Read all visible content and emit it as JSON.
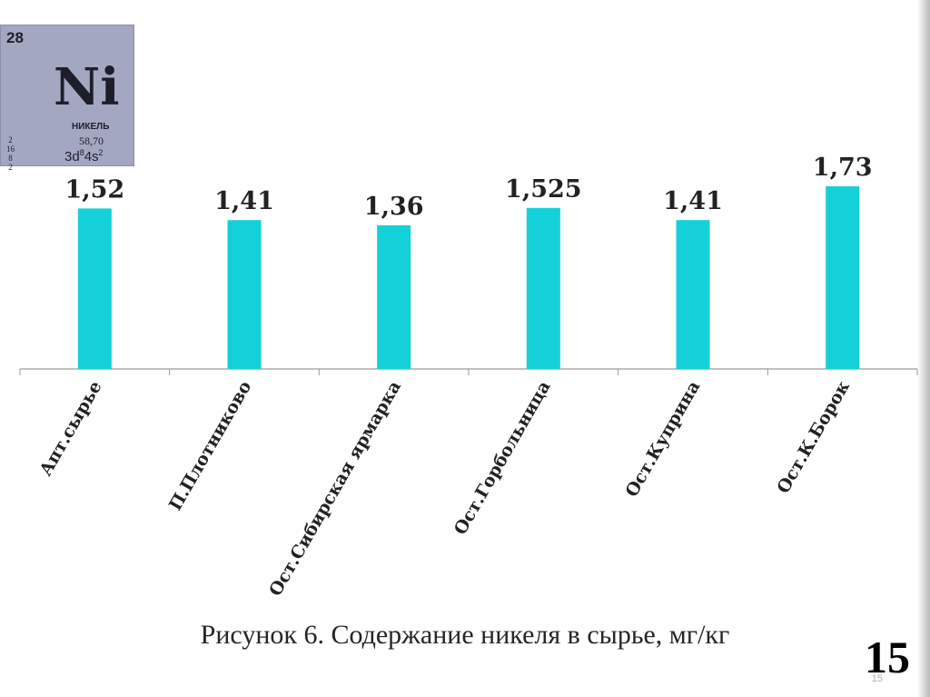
{
  "element": {
    "number": "28",
    "symbol": "Ni",
    "name": "НИКЕЛЬ",
    "mass": "58,70",
    "shells": [
      "2",
      "16",
      "8",
      "2"
    ],
    "config_base": "3d",
    "config_sup1": "8",
    "config_mid": "4s",
    "config_sup2": "2"
  },
  "chart_data": {
    "type": "bar",
    "categories": [
      "Апт.сырье",
      "П.Плотниково",
      "Ост.Сибирская ярмарка",
      "Ост.Горбольница",
      "Ост.Куприна",
      "Ост.К.Борок"
    ],
    "values": [
      1.52,
      1.41,
      1.36,
      1.525,
      1.41,
      1.73
    ],
    "labels": [
      "1,52",
      "1,41",
      "1,36",
      "1,525",
      "1,41",
      "1,73"
    ],
    "ylim": [
      0,
      1.73
    ],
    "grid": false,
    "bar_color": "#14d1d9",
    "title": "Рисунок 6. Содержание никеля в сырье, мг/кг"
  },
  "slide_number": "15",
  "slide_number_small": "15"
}
